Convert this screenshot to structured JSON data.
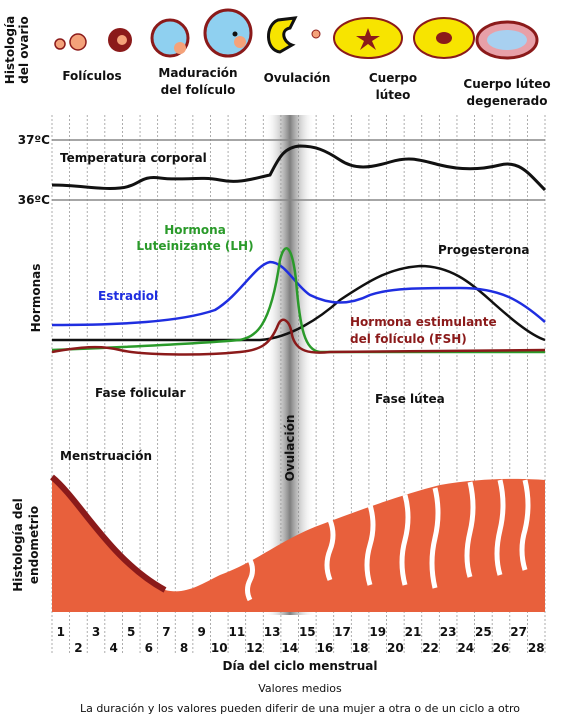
{
  "ovary": {
    "axis_label": [
      "Histología",
      "del ovario"
    ],
    "stages": [
      [
        "Folículos"
      ],
      [
        "Maduración",
        "del folículo"
      ],
      [
        "Ovulación"
      ],
      [
        "Cuerpo",
        "lúteo"
      ],
      [
        "Cuerpo lúteo",
        "degenerado"
      ]
    ]
  },
  "temperature": {
    "label": "Temperatura corporal",
    "high": "37ºC",
    "low": "36ºC"
  },
  "hormones": {
    "axis_label": "Hormonas",
    "lh": [
      "Hormona",
      "Luteinizante (LH)"
    ],
    "estradiol": "Estradiol",
    "progesterone": "Progesterona",
    "fsh": [
      "Hormona estimulante",
      "del folículo (FSH)"
    ]
  },
  "phases": {
    "follicular": "Fase folicular",
    "luteal": "Fase lútea",
    "ovulation": "Ovulación",
    "menstruation": "Menstruación"
  },
  "endometrium": {
    "axis_label": [
      "Histología del",
      "endometrio"
    ]
  },
  "days": [
    1,
    2,
    3,
    4,
    5,
    6,
    7,
    8,
    9,
    10,
    11,
    12,
    13,
    14,
    15,
    16,
    17,
    18,
    19,
    20,
    21,
    22,
    23,
    24,
    25,
    26,
    27,
    28
  ],
  "x_label": "Día del ciclo menstrual",
  "footer": [
    "Valores medios",
    "La duración y los valores pueden diferir de una mujer a otra o de un ciclo a otro"
  ]
}
